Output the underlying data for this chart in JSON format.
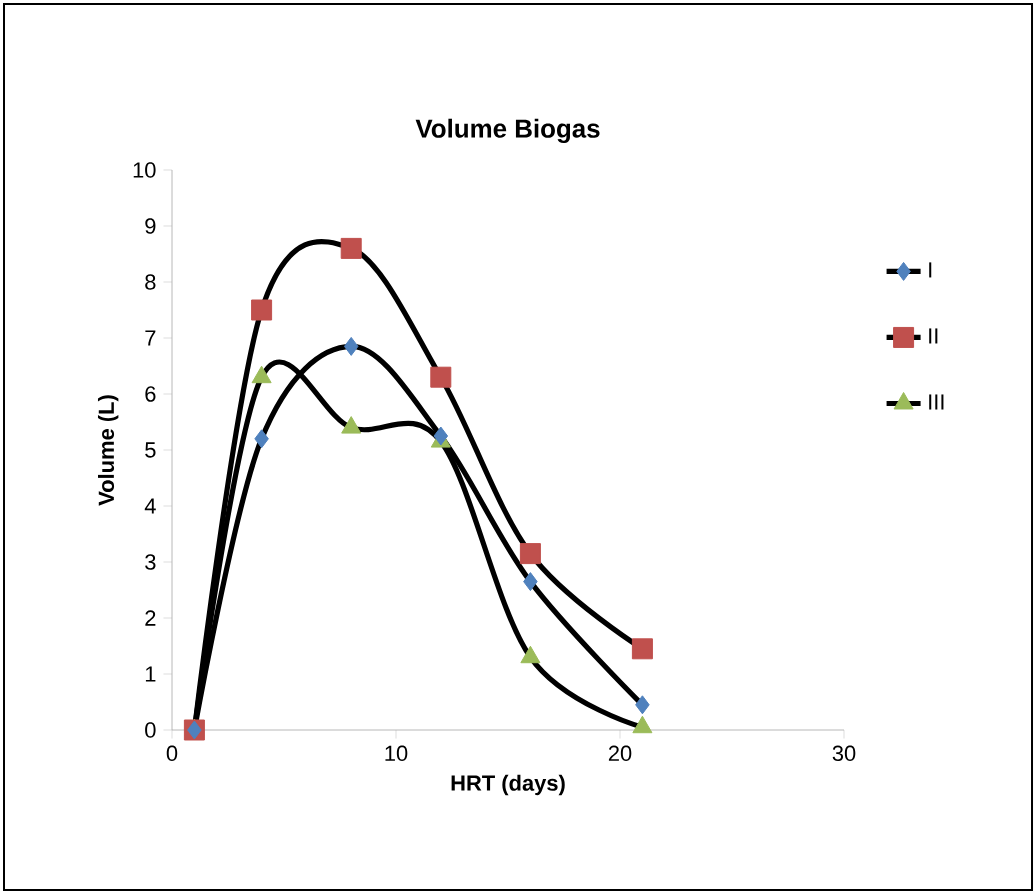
{
  "chart_data": {
    "type": "line",
    "title": "Volume Biogas",
    "xlabel": "HRT (days)",
    "ylabel": "Volume (L)",
    "x": [
      1,
      4,
      8,
      12,
      16,
      21
    ],
    "series": [
      {
        "name": "I",
        "color": "#4f81bd",
        "marker": "diamond",
        "values": [
          0,
          5.2,
          6.85,
          5.25,
          2.65,
          0.45
        ]
      },
      {
        "name": "II",
        "color": "#c0504d",
        "marker": "square",
        "values": [
          0,
          7.5,
          8.6,
          6.3,
          3.15,
          1.45
        ]
      },
      {
        "name": "III",
        "color": "#9bbb59",
        "marker": "triangle",
        "values": [
          0,
          6.3,
          5.4,
          5.15,
          1.3,
          0.05
        ]
      }
    ],
    "xlim": [
      0,
      30
    ],
    "xticks": [
      0,
      10,
      20,
      30
    ],
    "ylim": [
      0,
      10
    ],
    "yticks": [
      0,
      1,
      2,
      3,
      4,
      5,
      6,
      7,
      8,
      9,
      10
    ],
    "legend": "right",
    "grid": false,
    "line_style": "solid"
  }
}
